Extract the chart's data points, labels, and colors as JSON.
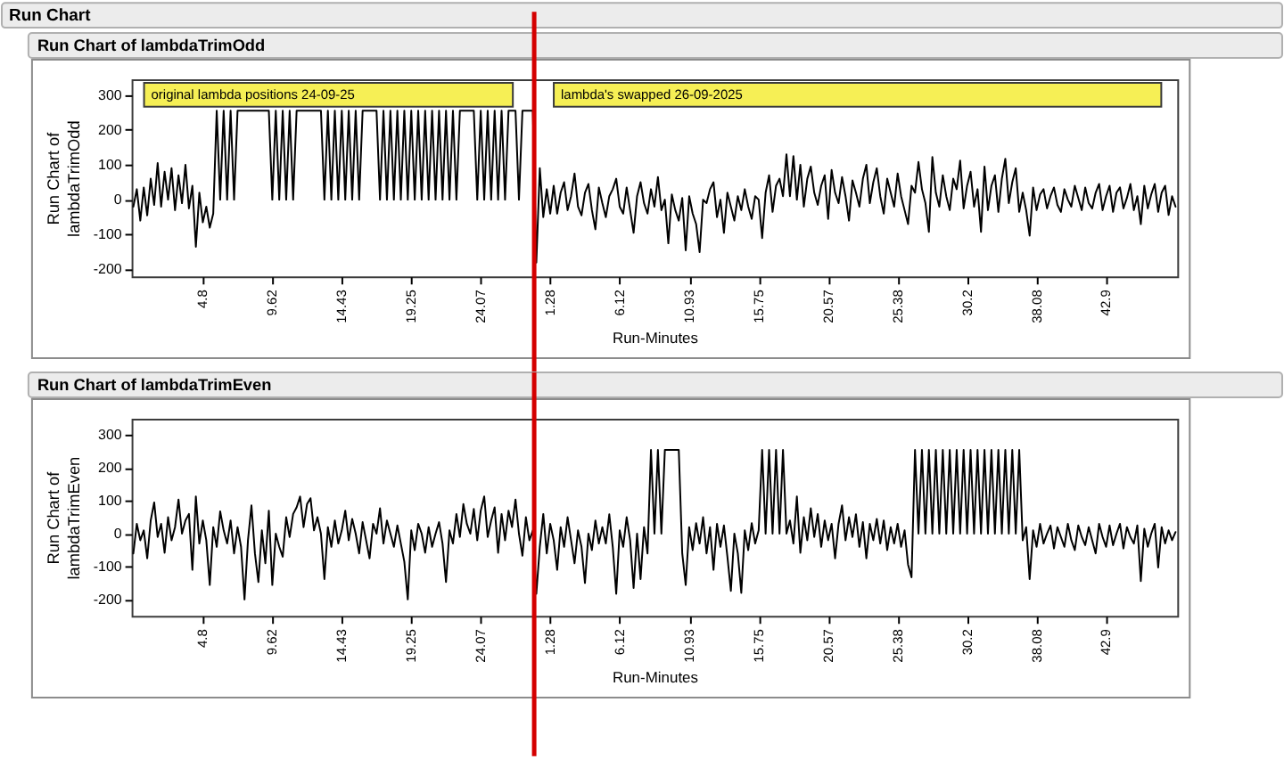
{
  "chart_data": [
    {
      "type": "line",
      "title": "Run Chart",
      "subtitle": "Run Chart of lambdaTrimOdd",
      "xlabel": "Run-Minutes",
      "ylabel": "Run Chart of lambdaTrimOdd",
      "color": "#000000",
      "categories": [
        null,
        null,
        null,
        null,
        null,
        null,
        null,
        null,
        null,
        null,
        null,
        null,
        null,
        null,
        null,
        null,
        null,
        null,
        null,
        null,
        "4.8",
        null,
        null,
        null,
        null,
        null,
        null,
        null,
        null,
        null,
        null,
        null,
        null,
        null,
        null,
        null,
        null,
        null,
        null,
        null,
        "9.62",
        null,
        null,
        null,
        null,
        null,
        null,
        null,
        null,
        null,
        null,
        null,
        null,
        null,
        null,
        null,
        null,
        null,
        null,
        null,
        "14.43",
        null,
        null,
        null,
        null,
        null,
        null,
        null,
        null,
        null,
        null,
        null,
        null,
        null,
        null,
        null,
        null,
        null,
        null,
        null,
        "19.25",
        null,
        null,
        null,
        null,
        null,
        null,
        null,
        null,
        null,
        null,
        null,
        null,
        null,
        null,
        null,
        null,
        null,
        null,
        null,
        "24.07",
        null,
        null,
        null,
        null,
        null,
        null,
        null,
        null,
        null,
        null,
        null,
        null,
        null,
        null,
        null,
        null,
        null,
        null,
        null,
        "1.28",
        null,
        null,
        null,
        null,
        null,
        null,
        null,
        null,
        null,
        null,
        null,
        null,
        null,
        null,
        null,
        null,
        null,
        null,
        null,
        "6.12",
        null,
        null,
        null,
        null,
        null,
        null,
        null,
        null,
        null,
        null,
        null,
        null,
        null,
        null,
        null,
        null,
        null,
        null,
        null,
        "10.93",
        null,
        null,
        null,
        null,
        null,
        null,
        null,
        null,
        null,
        null,
        null,
        null,
        null,
        null,
        null,
        null,
        null,
        null,
        null,
        "15.75",
        null,
        null,
        null,
        null,
        null,
        null,
        null,
        null,
        null,
        null,
        null,
        null,
        null,
        null,
        null,
        null,
        null,
        null,
        null,
        "20.57",
        null,
        null,
        null,
        null,
        null,
        null,
        null,
        null,
        null,
        null,
        null,
        null,
        null,
        null,
        null,
        null,
        null,
        null,
        null,
        "25.38",
        null,
        null,
        null,
        null,
        null,
        null,
        null,
        null,
        null,
        null,
        null,
        null,
        null,
        null,
        null,
        null,
        null,
        null,
        null,
        "30.2",
        null,
        null,
        null,
        null,
        null,
        null,
        null,
        null,
        null,
        null,
        null,
        null,
        null,
        null,
        null,
        null,
        null,
        null,
        null,
        "38.08",
        null,
        null,
        null,
        null,
        null,
        null,
        null,
        null,
        null,
        null,
        null,
        null,
        null,
        null,
        null,
        null,
        null,
        null,
        null,
        "42.9",
        null,
        null,
        null,
        null,
        null,
        null,
        null,
        null,
        null,
        null,
        null,
        null,
        null,
        null,
        null,
        null,
        null,
        null,
        null,
        null
      ],
      "values": [
        -20,
        30,
        -60,
        35,
        -45,
        60,
        -15,
        105,
        -20,
        80,
        0,
        90,
        -30,
        70,
        -10,
        100,
        -25,
        40,
        -135,
        20,
        -65,
        -20,
        -80,
        -40,
        255,
        0,
        255,
        0,
        255,
        0,
        255,
        255,
        255,
        255,
        255,
        255,
        255,
        255,
        255,
        255,
        0,
        255,
        0,
        255,
        0,
        255,
        0,
        255,
        255,
        255,
        255,
        255,
        255,
        255,
        255,
        0,
        255,
        0,
        255,
        0,
        255,
        0,
        255,
        0,
        255,
        0,
        255,
        255,
        255,
        255,
        255,
        0,
        255,
        0,
        255,
        0,
        255,
        0,
        255,
        0,
        255,
        0,
        255,
        0,
        255,
        0,
        255,
        0,
        255,
        0,
        255,
        0,
        255,
        0,
        255,
        255,
        255,
        255,
        255,
        0,
        255,
        0,
        255,
        0,
        255,
        0,
        255,
        0,
        255,
        255,
        255,
        0,
        255,
        255,
        255,
        255,
        -180,
        90,
        -50,
        30,
        -40,
        40,
        -40,
        20,
        50,
        -30,
        10,
        75,
        -20,
        -45,
        20,
        45,
        -30,
        -85,
        35,
        -10,
        -50,
        10,
        30,
        60,
        -20,
        -40,
        35,
        -30,
        -95,
        10,
        50,
        -10,
        -40,
        30,
        -20,
        65,
        -30,
        0,
        -125,
        15,
        -30,
        -60,
        5,
        -145,
        10,
        -40,
        -70,
        -150,
        0,
        -10,
        30,
        50,
        -50,
        0,
        -95,
        20,
        -20,
        -60,
        10,
        -30,
        30,
        -20,
        -55,
        10,
        0,
        -110,
        20,
        70,
        -35,
        40,
        60,
        10,
        130,
        10,
        125,
        0,
        100,
        -20,
        60,
        95,
        20,
        -15,
        40,
        70,
        -55,
        85,
        20,
        -10,
        65,
        10,
        -60,
        55,
        20,
        -20,
        60,
        100,
        -10,
        50,
        90,
        10,
        -40,
        60,
        20,
        -20,
        75,
        10,
        -30,
        -70,
        40,
        20,
        108,
        30,
        -10,
        -92,
        122,
        20,
        -20,
        70,
        10,
        -30,
        60,
        30,
        112,
        -25,
        40,
        80,
        -20,
        30,
        -92,
        95,
        -30,
        40,
        70,
        -35,
        60,
        117,
        -10,
        50,
        90,
        -35,
        20,
        -30,
        -103,
        35,
        -30,
        15,
        30,
        -25,
        10,
        35,
        -15,
        -35,
        30,
        0,
        -20,
        40,
        5,
        -30,
        35,
        -10,
        -25,
        20,
        45,
        -30,
        10,
        40,
        -35,
        20,
        35,
        -25,
        5,
        45,
        -30,
        10,
        -70,
        40,
        -25,
        15,
        45,
        -35,
        20,
        40,
        -44,
        10,
        -20
      ],
      "yticks": [
        -200,
        -100,
        0,
        100,
        200,
        300
      ],
      "ylim": [
        -220,
        345
      ],
      "annotations": [
        "original lambda positions 24-09-25",
        "lambda's swapped 26-09-2025"
      ]
    },
    {
      "type": "line",
      "title": "Run Chart of lambdaTrimEven",
      "xlabel": "Run-Minutes",
      "ylabel": "Run Chart of lambdaTrimEven",
      "color": "#000000",
      "categories": [
        null,
        null,
        null,
        null,
        null,
        null,
        null,
        null,
        null,
        null,
        null,
        null,
        null,
        null,
        null,
        null,
        null,
        null,
        null,
        null,
        "4.8",
        null,
        null,
        null,
        null,
        null,
        null,
        null,
        null,
        null,
        null,
        null,
        null,
        null,
        null,
        null,
        null,
        null,
        null,
        null,
        "9.62",
        null,
        null,
        null,
        null,
        null,
        null,
        null,
        null,
        null,
        null,
        null,
        null,
        null,
        null,
        null,
        null,
        null,
        null,
        null,
        "14.43",
        null,
        null,
        null,
        null,
        null,
        null,
        null,
        null,
        null,
        null,
        null,
        null,
        null,
        null,
        null,
        null,
        null,
        null,
        null,
        "19.25",
        null,
        null,
        null,
        null,
        null,
        null,
        null,
        null,
        null,
        null,
        null,
        null,
        null,
        null,
        null,
        null,
        null,
        null,
        null,
        "24.07",
        null,
        null,
        null,
        null,
        null,
        null,
        null,
        null,
        null,
        null,
        null,
        null,
        null,
        null,
        null,
        null,
        null,
        null,
        null,
        "1.28",
        null,
        null,
        null,
        null,
        null,
        null,
        null,
        null,
        null,
        null,
        null,
        null,
        null,
        null,
        null,
        null,
        null,
        null,
        null,
        "6.12",
        null,
        null,
        null,
        null,
        null,
        null,
        null,
        null,
        null,
        null,
        null,
        null,
        null,
        null,
        null,
        null,
        null,
        null,
        null,
        "10.93",
        null,
        null,
        null,
        null,
        null,
        null,
        null,
        null,
        null,
        null,
        null,
        null,
        null,
        null,
        null,
        null,
        null,
        null,
        null,
        "15.75",
        null,
        null,
        null,
        null,
        null,
        null,
        null,
        null,
        null,
        null,
        null,
        null,
        null,
        null,
        null,
        null,
        null,
        null,
        null,
        "20.57",
        null,
        null,
        null,
        null,
        null,
        null,
        null,
        null,
        null,
        null,
        null,
        null,
        null,
        null,
        null,
        null,
        null,
        null,
        null,
        "25.38",
        null,
        null,
        null,
        null,
        null,
        null,
        null,
        null,
        null,
        null,
        null,
        null,
        null,
        null,
        null,
        null,
        null,
        null,
        null,
        "30.2",
        null,
        null,
        null,
        null,
        null,
        null,
        null,
        null,
        null,
        null,
        null,
        null,
        null,
        null,
        null,
        null,
        null,
        null,
        null,
        "38.08",
        null,
        null,
        null,
        null,
        null,
        null,
        null,
        null,
        null,
        null,
        null,
        null,
        null,
        null,
        null,
        null,
        null,
        null,
        null,
        "42.9",
        null,
        null,
        null,
        null,
        null,
        null,
        null,
        null,
        null,
        null,
        null,
        null,
        null,
        null,
        null,
        null,
        null,
        null,
        null,
        null
      ],
      "values": [
        -60,
        30,
        -20,
        10,
        -75,
        40,
        95,
        -10,
        30,
        -58,
        50,
        -20,
        20,
        104,
        0,
        40,
        60,
        -110,
        113,
        -30,
        40,
        -20,
        -156,
        20,
        -40,
        68,
        10,
        -30,
        40,
        -60,
        20,
        -40,
        -200,
        -20,
        86,
        -60,
        -147,
        10,
        -90,
        70,
        -156,
        0,
        -40,
        -70,
        50,
        -10,
        60,
        80,
        113,
        20,
        90,
        108,
        10,
        50,
        0,
        -138,
        20,
        -40,
        40,
        -30,
        10,
        70,
        -20,
        45,
        0,
        -60,
        35,
        -20,
        -75,
        30,
        0,
        77,
        -30,
        40,
        0,
        -40,
        25,
        -30,
        -85,
        -200,
        10,
        -50,
        30,
        0,
        -58,
        20,
        -40,
        0,
        35,
        -30,
        -147,
        10,
        -30,
        60,
        -10,
        90,
        30,
        0,
        75,
        -20,
        70,
        113,
        -10,
        40,
        80,
        -58,
        60,
        -20,
        70,
        20,
        104,
        0,
        -67,
        50,
        -20,
        10,
        -183,
        -40,
        60,
        -60,
        30,
        -20,
        -110,
        20,
        -40,
        50,
        -20,
        -90,
        10,
        -40,
        -150,
        0,
        -50,
        40,
        -30,
        20,
        -30,
        59,
        -40,
        -183,
        10,
        -40,
        50,
        -20,
        -165,
        0,
        -138,
        20,
        -60,
        255,
        0,
        255,
        0,
        255,
        255,
        255,
        255,
        255,
        -60,
        -156,
        20,
        -50,
        32,
        -30,
        50,
        -60,
        20,
        -110,
        30,
        -40,
        25,
        -70,
        -174,
        0,
        -60,
        -180,
        10,
        -50,
        32,
        -30,
        10,
        255,
        0,
        255,
        0,
        255,
        0,
        255,
        0,
        40,
        -30,
        113,
        -58,
        50,
        -20,
        77,
        -10,
        60,
        -40,
        40,
        -20,
        30,
        -75,
        30,
        86,
        -20,
        50,
        -10,
        59,
        -40,
        35,
        -75,
        30,
        -20,
        45,
        -30,
        40,
        -50,
        20,
        -30,
        30,
        -40,
        10,
        -94,
        -133,
        255,
        0,
        255,
        0,
        255,
        0,
        255,
        0,
        255,
        0,
        255,
        0,
        255,
        0,
        255,
        0,
        255,
        0,
        255,
        0,
        255,
        0,
        255,
        0,
        255,
        0,
        255,
        0,
        255,
        0,
        255,
        -20,
        20,
        -138,
        10,
        -40,
        30,
        -30,
        0,
        25,
        -45,
        20,
        -10,
        -40,
        30,
        -20,
        -50,
        25,
        -10,
        -35,
        20,
        -20,
        -60,
        30,
        -10,
        -40,
        25,
        -35,
        0,
        30,
        -45,
        20,
        -10,
        -30,
        25,
        -144,
        15,
        -40,
        0,
        30,
        -103,
        20,
        -30,
        10,
        -20,
        5
      ],
      "yticks": [
        -200,
        -100,
        0,
        100,
        200,
        300
      ],
      "ylim": [
        -250,
        350
      ]
    }
  ]
}
